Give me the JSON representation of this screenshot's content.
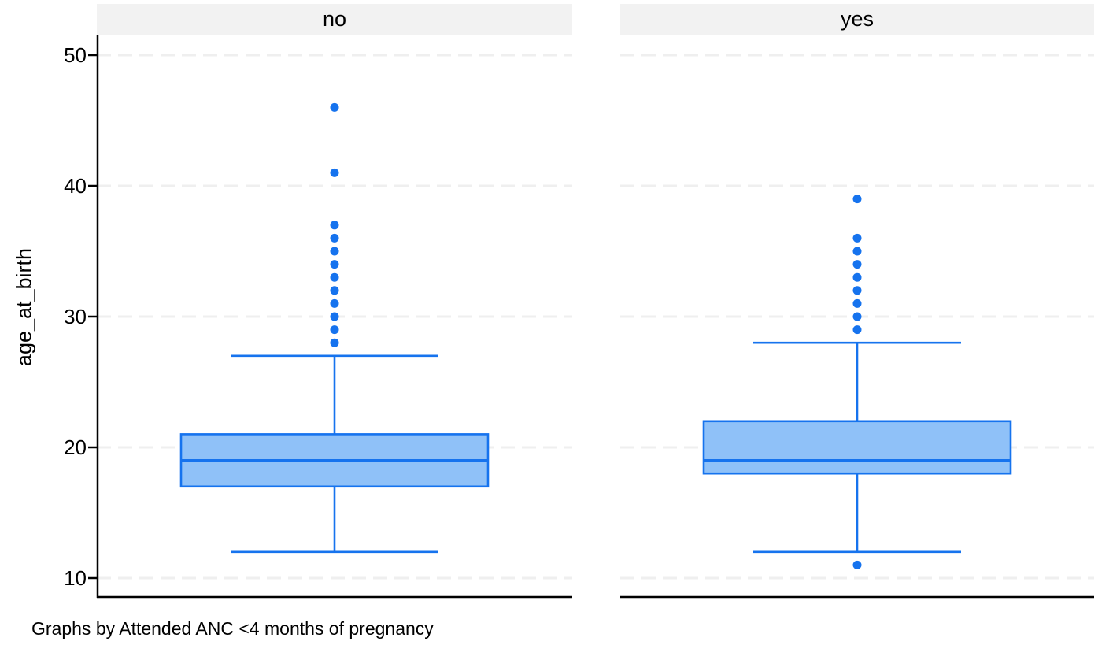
{
  "figure": {
    "caption": "Graphs by Attended ANC <4 months of pregnancy"
  },
  "chart_data": {
    "type": "boxplot",
    "title": "",
    "ylabel": "age_at_birth",
    "facet_by": "Attended ANC <4 months of pregnancy",
    "yaxis": {
      "ticks": [
        10,
        20,
        30,
        40,
        50
      ],
      "ylim": [
        9,
        51.5
      ]
    },
    "grid": "horizontal-dashed",
    "legend": "none",
    "panels": [
      {
        "label": "no",
        "q1": 17,
        "median": 19,
        "q3": 21,
        "whisker_low": 12,
        "whisker_high": 27,
        "outliers": [
          28,
          29,
          30,
          31,
          32,
          33,
          34,
          35,
          36,
          37,
          41,
          46
        ]
      },
      {
        "label": "yes",
        "q1": 18,
        "median": 19,
        "q3": 22,
        "whisker_low": 12,
        "whisker_high": 28,
        "outliers": [
          11,
          29,
          30,
          31,
          32,
          33,
          34,
          35,
          36,
          39
        ]
      }
    ],
    "colors": {
      "box_fill": "#8FC1F8",
      "box_stroke": "#1673EE",
      "outlier": "#1673EE",
      "grid": "#EFEFEF",
      "header_bg": "#F2F2F2",
      "axis": "#000000",
      "text": "#000000",
      "background": "#FFFFFF"
    }
  }
}
